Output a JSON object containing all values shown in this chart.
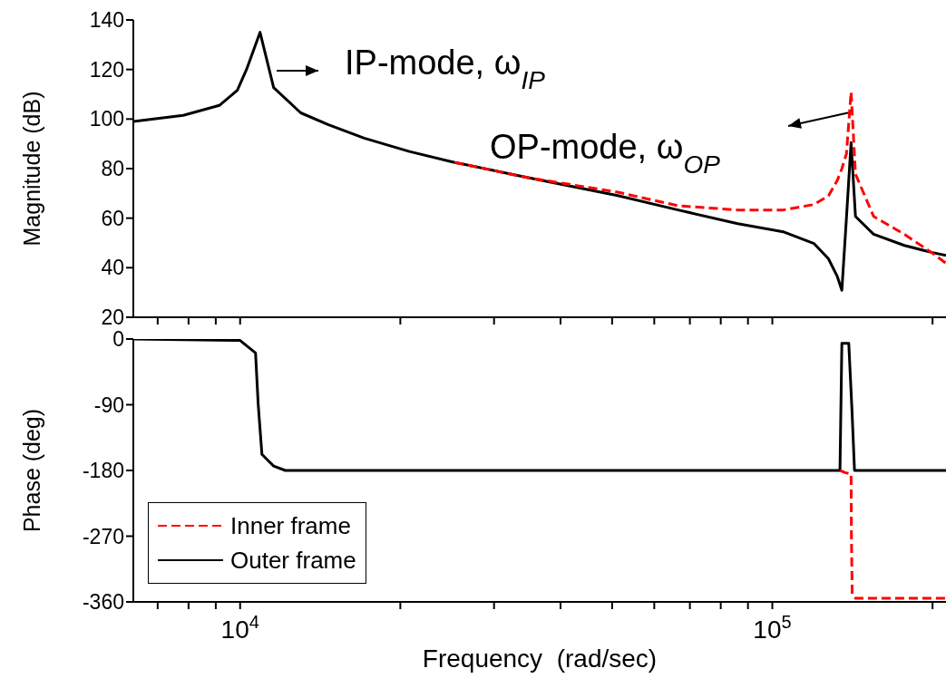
{
  "chart_data": [
    {
      "type": "line",
      "ylabel": "Magnitude (dB)",
      "xlim": [
        6300,
        212000
      ],
      "log": "x",
      "tick_labels": "y",
      "marker": "none",
      "legend": false,
      "xticks": [
        {
          "value": 7000,
          "label": null
        },
        {
          "value": 8000,
          "label": null
        },
        {
          "value": 9000,
          "label": null
        },
        {
          "value": 10000,
          "label": null
        },
        {
          "value": 20000,
          "label": null
        },
        {
          "value": 30000,
          "label": null
        },
        {
          "value": 40000,
          "label": null
        },
        {
          "value": 50000,
          "label": null
        },
        {
          "value": 60000,
          "label": null
        },
        {
          "value": 70000,
          "label": null
        },
        {
          "value": 80000,
          "label": null
        },
        {
          "value": 90000,
          "label": null
        },
        {
          "value": 100000,
          "label": null
        },
        {
          "value": 200000,
          "label": null
        }
      ],
      "ylim": [
        20,
        140
      ],
      "yticks": [
        20,
        40,
        60,
        80,
        100,
        120,
        140
      ],
      "annotations": [
        "IP-mode, ω$_{IP}$",
        "OP-mode, ω$_{OP}$"
      ],
      "series": [
        {
          "color": "#ff0000",
          "line_style": "dashed",
          "x": [
            25300,
            34600,
            51200,
            66500,
            86100,
            104800,
            119700,
            127500,
            132500,
            135100,
            137800,
            140600,
            143300,
            155000,
            177000,
            199000,
            212000
          ],
          "values": [
            82.5,
            76.4,
            70.5,
            65,
            63.3,
            63.3,
            65.5,
            69,
            75.3,
            80,
            86,
            110.9,
            77.8,
            60.7,
            53.5,
            46.2,
            41.8
          ]
        },
        {
          "color": "#000000",
          "line_style": "solid",
          "x": [
            6300,
            7820,
            9140,
            9880,
            10280,
            10900,
            11560,
            13000,
            14620,
            17100,
            20800,
            25300,
            34600,
            51200,
            66500,
            86100,
            104800,
            119700,
            127500,
            132500,
            135100,
            137800,
            140600,
            143300,
            155000,
            177000,
            199000,
            212000
          ],
          "values": [
            99,
            101.5,
            105.5,
            111.6,
            120,
            135,
            112.7,
            102.5,
            97.8,
            92.3,
            86.9,
            82.5,
            76.4,
            69.1,
            63.3,
            57.8,
            54.5,
            49.8,
            43.6,
            36.4,
            30.9,
            60,
            90.5,
            60.7,
            53.5,
            49,
            46.2,
            45
          ]
        }
      ]
    },
    {
      "type": "line",
      "xlabel": "Frequency  (rad/sec)",
      "ylabel": "Phase (deg)",
      "xlim": [
        6300,
        212000
      ],
      "log": "x",
      "marker": "none",
      "legend": "bottom left",
      "xticks": [
        {
          "value": 7000,
          "label": null
        },
        {
          "value": 8000,
          "label": null
        },
        {
          "value": 9000,
          "label": null
        },
        {
          "value": 10000,
          "label": "10$^{4}$"
        },
        {
          "value": 20000,
          "label": null
        },
        {
          "value": 30000,
          "label": null
        },
        {
          "value": 40000,
          "label": null
        },
        {
          "value": 50000,
          "label": null
        },
        {
          "value": 60000,
          "label": null
        },
        {
          "value": 70000,
          "label": null
        },
        {
          "value": 80000,
          "label": null
        },
        {
          "value": 90000,
          "label": null
        },
        {
          "value": 100000,
          "label": "10$^{5}$"
        },
        {
          "value": 200000,
          "label": null
        }
      ],
      "ylim": [
        -360,
        0
      ],
      "yticks": [
        0,
        -90,
        -180,
        -270,
        -360
      ],
      "series": [
        {
          "name": "Inner frame",
          "color": "#ff0000",
          "line_style": "dashed",
          "x": [
            134000,
            137000,
            140600,
            140800,
            141300,
            143300,
            212000
          ],
          "values": [
            -180,
            -183,
            -185,
            -270,
            -350,
            -355,
            -355
          ]
        },
        {
          "name": "Outer frame",
          "color": "#000000",
          "line_style": "solid",
          "x": [
            6300,
            10000,
            10690,
            10810,
            10990,
            11560,
            12160,
            134000,
            135100,
            139200,
            141200,
            142700,
            212000
          ],
          "values": [
            0,
            -2,
            -19,
            -88,
            -158,
            -174,
            -180,
            -180,
            -6,
            -6,
            -100,
            -180,
            -180
          ]
        }
      ]
    }
  ]
}
